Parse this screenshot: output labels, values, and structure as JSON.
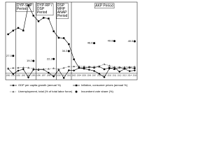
{
  "chart_data": {
    "type": "line",
    "x": [
      1990,
      1991,
      1992,
      1993,
      1994,
      1995,
      1996,
      1997,
      1998,
      1999,
      2000,
      2001,
      2002,
      2003,
      2004,
      2005,
      2006,
      2007,
      2008,
      2009,
      2010,
      2011,
      2012,
      2013,
      2014,
      2015
    ],
    "xlim": [
      1989.5,
      2015.5
    ],
    "ylim": [
      -10,
      110
    ],
    "series": [
      {
        "name": "GDP per capita growth (annual %)",
        "color": "#000000",
        "marker": "diamond",
        "values": [
          7.2,
          -1.0,
          4.1,
          6.3,
          -6.3,
          5.7,
          5.3,
          5.9,
          0.8,
          -4.9,
          5.3,
          -7.2,
          4.7,
          4.3,
          8.2,
          7.1,
          5.6,
          3.7,
          -0.6,
          -6.0,
          7.3,
          9.1,
          2.6,
          6.9,
          3.4,
          4.5
        ]
      },
      {
        "name": "Inflation, consumer prices (annual %)",
        "color": "#000000",
        "marker": "square",
        "values": [
          60.3,
          66.0,
          70.1,
          66.1,
          105.2,
          89.1,
          80.4,
          85.7,
          84.6,
          64.9,
          54.9,
          54.4,
          45.0,
          21.6,
          8.6,
          8.2,
          9.6,
          8.8,
          10.4,
          6.3,
          8.6,
          6.5,
          8.9,
          7.5,
          8.9,
          7.7
        ]
      },
      {
        "name": "Unemployment, total (% of total labor force)",
        "color": "#555555",
        "marker": "triangle",
        "values": [
          8.0,
          8.2,
          8.5,
          8.9,
          8.6,
          7.6,
          6.6,
          6.8,
          6.9,
          7.7,
          6.5,
          8.4,
          10.4,
          10.5,
          10.8,
          10.6,
          10.2,
          10.3,
          11.0,
          14.0,
          11.9,
          9.8,
          9.2,
          9.7,
          9.9,
          10.3
        ]
      },
      {
        "name": "Incumbent vote share (%)",
        "color": "#000000",
        "marker": "dot",
        "values": [
          null,
          27.0,
          null,
          null,
          null,
          19.2,
          null,
          null,
          null,
          22.2,
          null,
          null,
          34.3,
          null,
          null,
          null,
          null,
          46.6,
          null,
          null,
          null,
          49.8,
          null,
          null,
          null,
          49.5
        ],
        "value_labels": [
          null,
          "27.0",
          null,
          null,
          null,
          "19.2",
          null,
          null,
          null,
          "22.2",
          null,
          null,
          "34.3",
          null,
          null,
          null,
          null,
          "46.6",
          null,
          null,
          null,
          "49.8",
          null,
          null,
          null,
          "49.5"
        ]
      }
    ],
    "periods": [
      {
        "label": "DYP-SHP Period",
        "start": 1991.5,
        "end": 1995.5
      },
      {
        "label": "DYP-RP / DSP Period",
        "start": 1995.5,
        "end": 1999.5
      },
      {
        "label": "DSP MHP ANAP Period",
        "start": 1999.5,
        "end": 2002.5
      },
      {
        "label": "AKP Period",
        "start": 2002.5,
        "end": 2015.5
      }
    ]
  }
}
